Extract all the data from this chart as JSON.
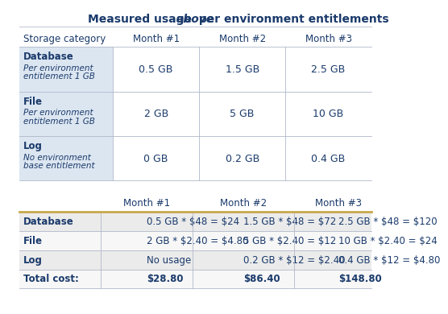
{
  "title_color": "#1a3a6b",
  "background_color": "#ffffff",
  "table1": {
    "header": [
      "Storage category",
      "Month #1",
      "Month #2",
      "Month #3"
    ],
    "rows": [
      {
        "category_bold": "Database",
        "category_italic": "Per environment\nentitlement 1 GB",
        "values": [
          "0.5 GB",
          "1.5 GB",
          "2.5 GB"
        ]
      },
      {
        "category_bold": "File",
        "category_italic": "Per environment\nentitlement 1 GB",
        "values": [
          "2 GB",
          "5 GB",
          "10 GB"
        ]
      },
      {
        "category_bold": "Log",
        "category_italic": "No environment\nbase entitlement",
        "values": [
          "0 GB",
          "0.2 GB",
          "0.4 GB"
        ]
      }
    ],
    "cat_col_bg": "#dce6f1",
    "row_bg": "#ffffff",
    "header_color": "#1a3a6b",
    "data_color": "#1a3a6b",
    "border_color": "#b0b8c8"
  },
  "table2": {
    "header": [
      "",
      "Month #1",
      "Month #2",
      "Month #3"
    ],
    "rows": [
      {
        "category": "Database",
        "values": [
          "0.5 GB * $48 = $24",
          "1.5 GB * $48 = $72",
          "2.5 GB * $48 = $120"
        ],
        "bold": false
      },
      {
        "category": "File",
        "values": [
          "2 GB * $2.40 = $4.80",
          "5 GB * $2.40 = $12",
          "10 GB * $2.40 = $24"
        ],
        "bold": false
      },
      {
        "category": "Log",
        "values": [
          "No usage",
          "0.2 GB * $12 = $2.40",
          "0.4 GB * $12 = $4.80"
        ],
        "bold": false
      },
      {
        "category": "Total cost:",
        "values": [
          "$28.80",
          "$86.40",
          "$148.80"
        ],
        "bold": true
      }
    ],
    "header_color": "#1a3a6b",
    "data_color": "#1a3a6b",
    "row_bg_even": "#ebebeb",
    "row_bg_odd": "#f7f7f7",
    "top_border_color": "#c9a84c",
    "border_color": "#b0b8c8"
  }
}
